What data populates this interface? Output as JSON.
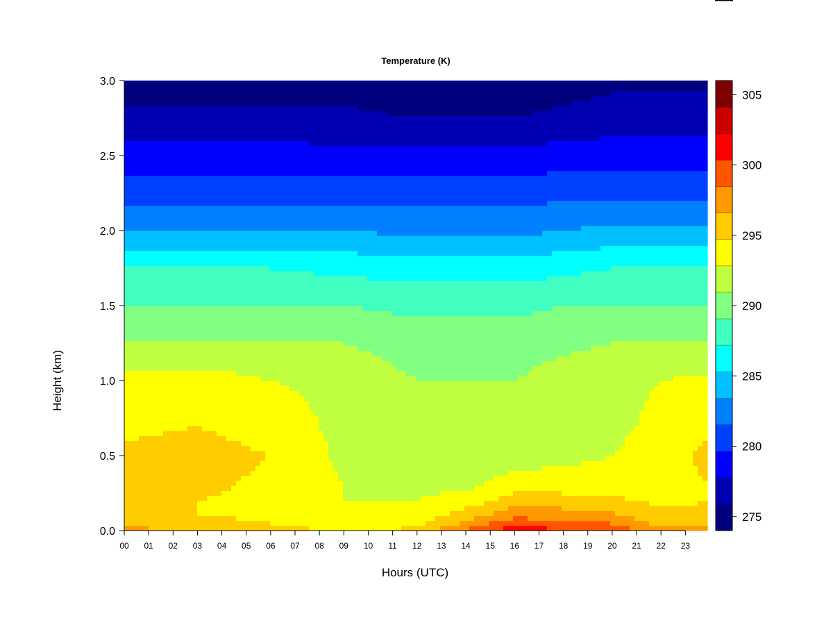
{
  "chart_data": {
    "type": "heatmap",
    "title": "Temperature (K)",
    "xlabel": "Hours (UTC)",
    "ylabel": "Height (km)",
    "x_unit": "hour",
    "xlim": [
      0,
      23.9
    ],
    "ylim": [
      0.0,
      3.0
    ],
    "x_ticks": [
      "00",
      "01",
      "02",
      "03",
      "04",
      "05",
      "06",
      "07",
      "08",
      "09",
      "10",
      "11",
      "12",
      "13",
      "14",
      "15",
      "16",
      "17",
      "18",
      "19",
      "20",
      "21",
      "22",
      "23"
    ],
    "y_ticks": [
      "0.0",
      "0.5",
      "1.0",
      "1.5",
      "2.0",
      "2.5",
      "3.0"
    ],
    "colorbar": {
      "label_ticks": [
        "275",
        "280",
        "285",
        "290",
        "295",
        "300",
        "305"
      ],
      "levels": [
        274,
        276,
        278,
        280,
        282,
        284,
        286,
        288,
        290,
        292,
        294,
        296,
        298,
        300,
        302,
        304,
        306
      ],
      "colors": [
        "#00007f",
        "#0000b2",
        "#0000ff",
        "#0040ff",
        "#0080ff",
        "#00c0ff",
        "#00ffff",
        "#40ffc0",
        "#80ff80",
        "#c0ff40",
        "#ffff00",
        "#ffcc00",
        "#ff9900",
        "#ff5500",
        "#ff0000",
        "#cc0000",
        "#7f0000"
      ]
    },
    "profile_heights_km": [
      0.0,
      0.05,
      0.1,
      0.2,
      0.3,
      0.5,
      0.7,
      1.0,
      1.25,
      1.5,
      1.75,
      2.0,
      2.25,
      2.5,
      2.75,
      3.0
    ],
    "profiles": [
      {
        "hour": 0,
        "temperature_K": [
          298.5,
          297.5,
          296.5,
          296.0,
          296.0,
          296.5,
          295.5,
          294.5,
          292.0,
          290.0,
          288.0,
          284.0,
          281.0,
          279.0,
          276.5,
          275.0
        ]
      },
      {
        "hour": 3,
        "temperature_K": [
          298.0,
          297.0,
          296.0,
          296.0,
          296.5,
          297.0,
          296.0,
          295.0,
          292.0,
          290.0,
          288.0,
          284.0,
          281.0,
          279.0,
          276.5,
          275.0
        ]
      },
      {
        "hour": 6,
        "temperature_K": [
          297.0,
          296.0,
          295.5,
          295.5,
          295.5,
          296.0,
          295.0,
          294.0,
          292.0,
          290.0,
          288.0,
          284.0,
          281.0,
          279.0,
          276.5,
          275.0
        ]
      },
      {
        "hour": 9,
        "temperature_K": [
          295.5,
          295.0,
          294.5,
          294.0,
          294.0,
          293.5,
          293.5,
          293.5,
          292.0,
          290.0,
          287.5,
          284.0,
          281.0,
          278.5,
          276.5,
          275.0
        ]
      },
      {
        "hour": 12,
        "temperature_K": [
          296.5,
          295.5,
          295.0,
          294.0,
          293.5,
          293.0,
          292.5,
          292.0,
          291.0,
          289.5,
          287.0,
          283.5,
          281.0,
          278.5,
          276.0,
          274.5
        ]
      },
      {
        "hour": 14,
        "temperature_K": [
          300.5,
          298.5,
          297.0,
          295.0,
          293.5,
          292.5,
          292.0,
          292.0,
          291.0,
          289.5,
          287.0,
          283.5,
          281.0,
          278.5,
          276.0,
          274.5
        ]
      },
      {
        "hour": 16,
        "temperature_K": [
          303.5,
          301.5,
          299.5,
          297.0,
          295.0,
          293.0,
          292.5,
          292.0,
          291.0,
          289.5,
          287.0,
          283.5,
          281.0,
          278.5,
          276.0,
          274.5
        ]
      },
      {
        "hour": 18,
        "temperature_K": [
          302.0,
          300.5,
          299.0,
          297.0,
          295.0,
          293.5,
          293.0,
          293.0,
          291.5,
          290.0,
          287.5,
          284.0,
          281.5,
          279.0,
          276.5,
          275.0
        ]
      },
      {
        "hour": 20,
        "temperature_K": [
          301.5,
          300.0,
          298.5,
          296.5,
          295.0,
          294.0,
          293.5,
          293.5,
          292.0,
          290.0,
          288.0,
          284.5,
          281.5,
          279.0,
          277.0,
          275.5
        ]
      },
      {
        "hour": 22,
        "temperature_K": [
          299.0,
          297.5,
          296.5,
          295.5,
          295.0,
          295.0,
          294.5,
          294.0,
          292.0,
          290.0,
          288.0,
          284.5,
          281.5,
          279.0,
          277.0,
          275.5
        ]
      },
      {
        "hour": 23.9,
        "temperature_K": [
          298.5,
          297.0,
          296.5,
          296.0,
          296.0,
          296.5,
          295.5,
          294.5,
          292.0,
          290.0,
          288.0,
          284.5,
          281.5,
          279.0,
          277.0,
          275.5
        ]
      }
    ]
  }
}
